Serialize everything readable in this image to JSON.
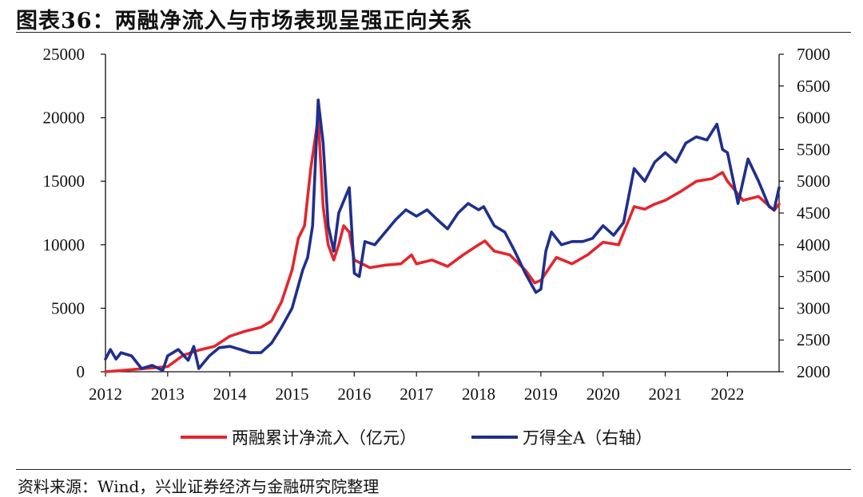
{
  "title": "图表36：两融净流入与市场表现呈强正向关系",
  "source": "资料来源：Wind，兴业证券经济与金融研究院整理",
  "chart_data": {
    "type": "line",
    "xlim": [
      2012,
      2022.83
    ],
    "x_ticks": [
      "2012",
      "2013",
      "2014",
      "2015",
      "2016",
      "2017",
      "2018",
      "2019",
      "2020",
      "2021",
      "2022"
    ],
    "y_left": {
      "lim": [
        0,
        25000
      ],
      "ticks": [
        "0",
        "5000",
        "10000",
        "15000",
        "20000",
        "25000"
      ]
    },
    "y_right": {
      "lim": [
        2000,
        7000
      ],
      "ticks": [
        "2000",
        "2500",
        "3000",
        "3500",
        "4000",
        "4500",
        "5000",
        "5500",
        "6000",
        "6500",
        "7000"
      ]
    },
    "grid": false,
    "legend_position": "bottom",
    "series": [
      {
        "name": "两融累计净流入（亿元）",
        "axis": "left",
        "color": "#e2272e",
        "points": [
          [
            2012.0,
            0
          ],
          [
            2012.25,
            100
          ],
          [
            2012.5,
            200
          ],
          [
            2012.75,
            300
          ],
          [
            2013.0,
            400
          ],
          [
            2013.25,
            1300
          ],
          [
            2013.5,
            1700
          ],
          [
            2013.75,
            2000
          ],
          [
            2014.0,
            2800
          ],
          [
            2014.25,
            3200
          ],
          [
            2014.5,
            3500
          ],
          [
            2014.67,
            4000
          ],
          [
            2014.83,
            5500
          ],
          [
            2015.0,
            8000
          ],
          [
            2015.1,
            10500
          ],
          [
            2015.2,
            11500
          ],
          [
            2015.3,
            16000
          ],
          [
            2015.42,
            20000
          ],
          [
            2015.5,
            13000
          ],
          [
            2015.58,
            10000
          ],
          [
            2015.67,
            8800
          ],
          [
            2015.75,
            10000
          ],
          [
            2015.83,
            11500
          ],
          [
            2015.92,
            11000
          ],
          [
            2016.0,
            8800
          ],
          [
            2016.25,
            8200
          ],
          [
            2016.5,
            8400
          ],
          [
            2016.75,
            8500
          ],
          [
            2016.92,
            9200
          ],
          [
            2017.0,
            8500
          ],
          [
            2017.25,
            8800
          ],
          [
            2017.5,
            8300
          ],
          [
            2017.75,
            9200
          ],
          [
            2018.0,
            10000
          ],
          [
            2018.1,
            10300
          ],
          [
            2018.25,
            9500
          ],
          [
            2018.5,
            9200
          ],
          [
            2018.75,
            8000
          ],
          [
            2018.9,
            7000
          ],
          [
            2019.0,
            7200
          ],
          [
            2019.25,
            9000
          ],
          [
            2019.5,
            8500
          ],
          [
            2019.75,
            9200
          ],
          [
            2020.0,
            10200
          ],
          [
            2020.25,
            10000
          ],
          [
            2020.5,
            13000
          ],
          [
            2020.67,
            12800
          ],
          [
            2020.83,
            13200
          ],
          [
            2021.0,
            13500
          ],
          [
            2021.25,
            14200
          ],
          [
            2021.5,
            15000
          ],
          [
            2021.75,
            15200
          ],
          [
            2021.92,
            15700
          ],
          [
            2022.0,
            15000
          ],
          [
            2022.25,
            13500
          ],
          [
            2022.5,
            13800
          ],
          [
            2022.75,
            12700
          ],
          [
            2022.83,
            13200
          ]
        ]
      },
      {
        "name": "万得全A（右轴）",
        "axis": "right",
        "color": "#1f2f8c",
        "points": [
          [
            2012.0,
            2200
          ],
          [
            2012.08,
            2350
          ],
          [
            2012.17,
            2200
          ],
          [
            2012.25,
            2300
          ],
          [
            2012.42,
            2250
          ],
          [
            2012.58,
            2050
          ],
          [
            2012.75,
            2100
          ],
          [
            2012.92,
            2020
          ],
          [
            2013.0,
            2250
          ],
          [
            2013.17,
            2350
          ],
          [
            2013.33,
            2180
          ],
          [
            2013.42,
            2400
          ],
          [
            2013.5,
            2050
          ],
          [
            2013.67,
            2250
          ],
          [
            2013.83,
            2380
          ],
          [
            2014.0,
            2400
          ],
          [
            2014.17,
            2350
          ],
          [
            2014.33,
            2300
          ],
          [
            2014.5,
            2300
          ],
          [
            2014.67,
            2450
          ],
          [
            2014.83,
            2700
          ],
          [
            2015.0,
            3000
          ],
          [
            2015.17,
            3600
          ],
          [
            2015.25,
            3800
          ],
          [
            2015.33,
            4300
          ],
          [
            2015.42,
            6280
          ],
          [
            2015.5,
            5600
          ],
          [
            2015.58,
            4300
          ],
          [
            2015.67,
            3900
          ],
          [
            2015.75,
            4500
          ],
          [
            2015.92,
            4900
          ],
          [
            2016.0,
            3550
          ],
          [
            2016.08,
            3500
          ],
          [
            2016.17,
            4050
          ],
          [
            2016.33,
            4000
          ],
          [
            2016.5,
            4200
          ],
          [
            2016.67,
            4400
          ],
          [
            2016.83,
            4550
          ],
          [
            2017.0,
            4450
          ],
          [
            2017.17,
            4550
          ],
          [
            2017.33,
            4400
          ],
          [
            2017.5,
            4250
          ],
          [
            2017.67,
            4500
          ],
          [
            2017.83,
            4650
          ],
          [
            2018.0,
            4550
          ],
          [
            2018.08,
            4600
          ],
          [
            2018.25,
            4300
          ],
          [
            2018.42,
            4200
          ],
          [
            2018.58,
            3900
          ],
          [
            2018.75,
            3550
          ],
          [
            2018.92,
            3250
          ],
          [
            2019.0,
            3300
          ],
          [
            2019.08,
            3900
          ],
          [
            2019.17,
            4200
          ],
          [
            2019.33,
            4000
          ],
          [
            2019.5,
            4050
          ],
          [
            2019.67,
            4050
          ],
          [
            2019.83,
            4100
          ],
          [
            2020.0,
            4300
          ],
          [
            2020.17,
            4150
          ],
          [
            2020.33,
            4350
          ],
          [
            2020.5,
            5200
          ],
          [
            2020.67,
            5000
          ],
          [
            2020.83,
            5300
          ],
          [
            2021.0,
            5450
          ],
          [
            2021.17,
            5300
          ],
          [
            2021.33,
            5600
          ],
          [
            2021.5,
            5700
          ],
          [
            2021.67,
            5650
          ],
          [
            2021.83,
            5900
          ],
          [
            2021.92,
            5500
          ],
          [
            2022.0,
            5450
          ],
          [
            2022.17,
            4650
          ],
          [
            2022.33,
            5350
          ],
          [
            2022.5,
            5000
          ],
          [
            2022.67,
            4600
          ],
          [
            2022.75,
            4550
          ],
          [
            2022.83,
            4900
          ]
        ]
      }
    ]
  }
}
